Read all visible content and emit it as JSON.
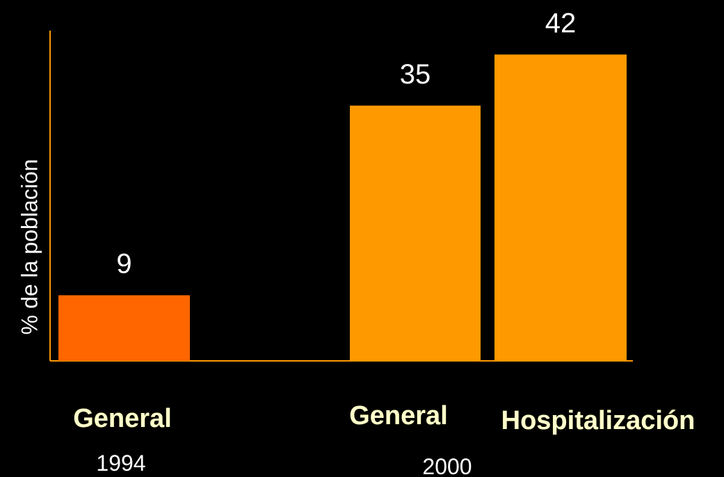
{
  "chart_data": {
    "type": "bar",
    "title": "",
    "ylabel": "% de la población",
    "xlabel": "",
    "ylim": [
      0,
      50
    ],
    "grid": false,
    "categories": [
      "General",
      "General",
      "Hospitalización"
    ],
    "groups": [
      {
        "label": "1994",
        "categories": [
          "General"
        ]
      },
      {
        "label": "2000",
        "categories": [
          "General",
          "Hospitalización"
        ]
      }
    ],
    "values": [
      9,
      35,
      42
    ],
    "data_labels": [
      "9",
      "35",
      "42"
    ],
    "bar_colors": [
      "#ff6600",
      "#ff9900",
      "#ff9900"
    ],
    "axis_color": "#ff9900"
  }
}
